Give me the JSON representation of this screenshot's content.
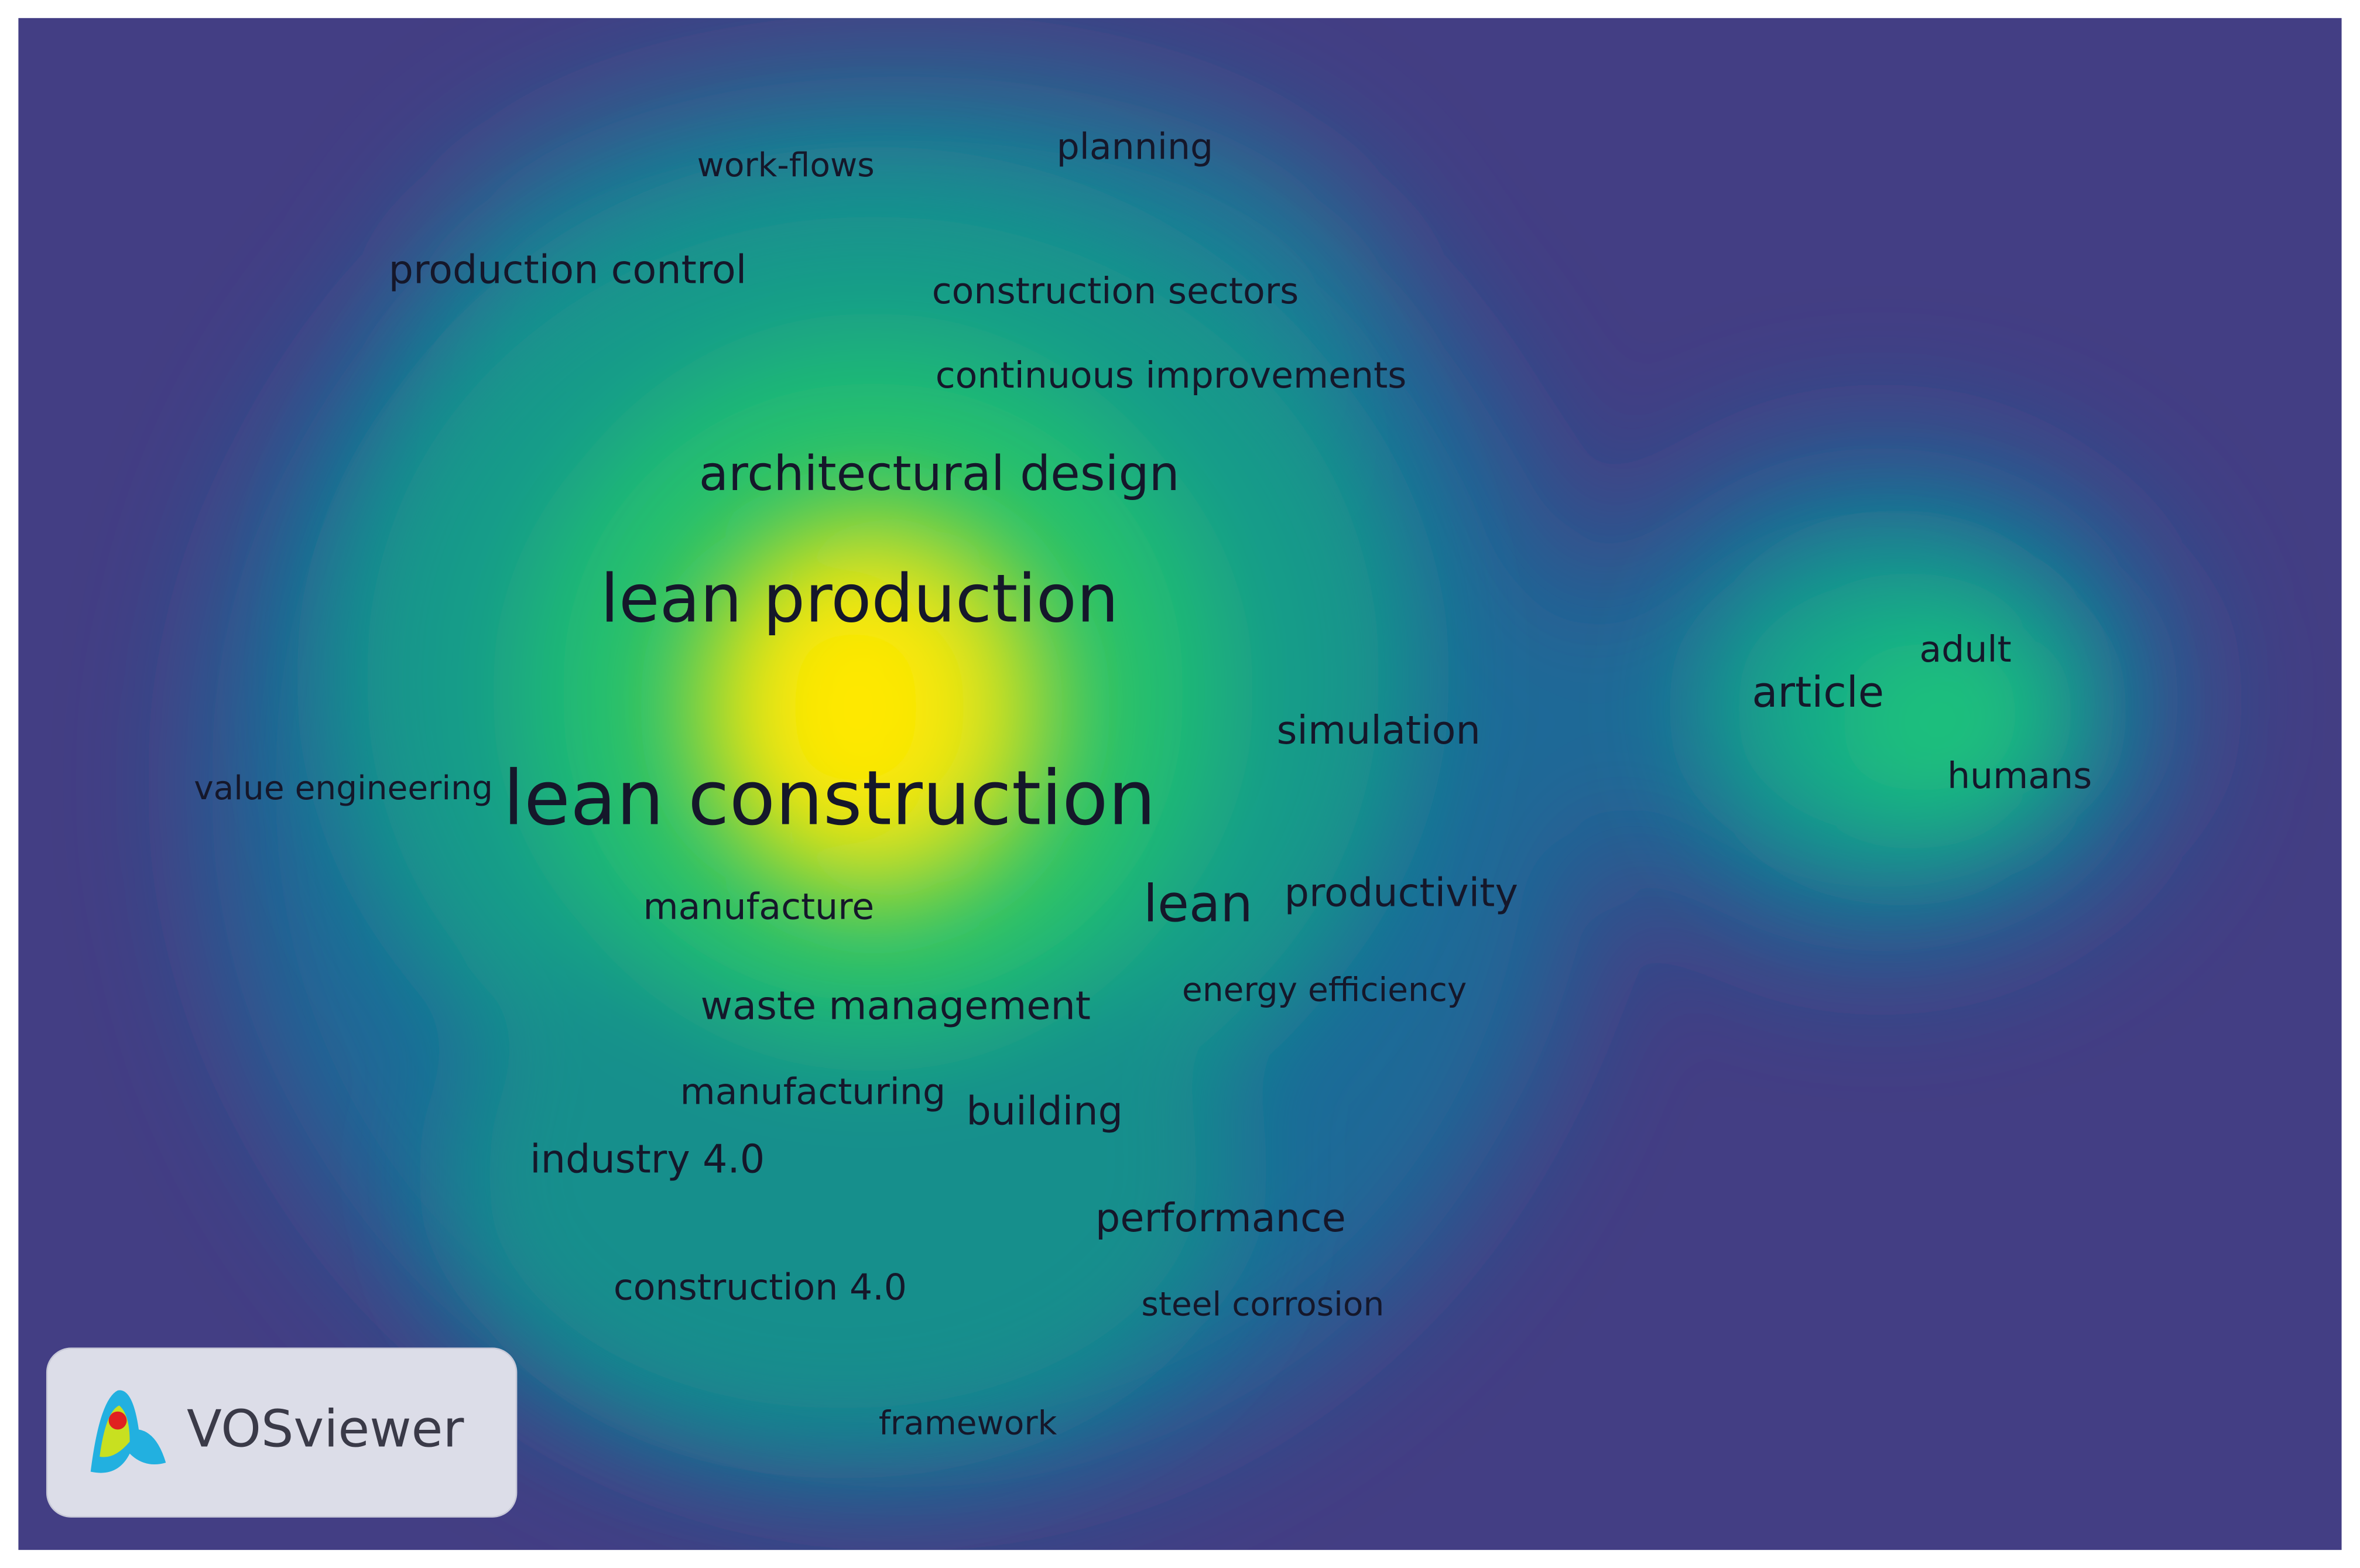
{
  "labels": [
    "work-flows",
    "planning",
    "production control",
    "construction sectors",
    "continuous improvements",
    "architectural design",
    "lean production",
    "simulation",
    "article",
    "adult",
    "humans",
    "value engineering",
    "lean construction",
    "manufacture",
    "lean",
    "productivity",
    "waste management",
    "energy efficiency",
    "manufacturing",
    "building",
    "industry 4.0",
    "performance",
    "construction 4.0",
    "steel corrosion",
    "framework"
  ],
  "logo": {
    "text": "VOSviewer"
  }
}
